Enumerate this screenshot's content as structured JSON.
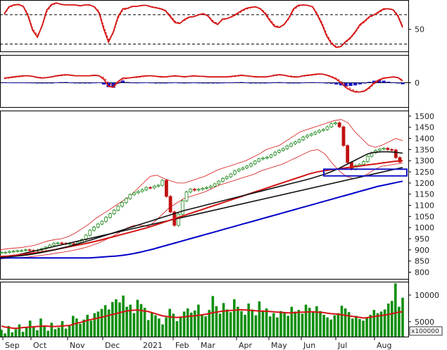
{
  "chart_data": [
    {
      "panel": "oscillator",
      "type": "line",
      "ylim": [
        5,
        110
      ],
      "y_ticks": [
        50
      ],
      "ref_lines": [
        80,
        20
      ],
      "series": [
        {
          "color": "#d41414",
          "values": [
            82,
            96,
            100,
            101,
            97,
            78,
            48,
            34,
            58,
            90,
            101,
            104,
            101,
            100,
            100,
            100,
            98,
            100,
            100,
            96,
            84,
            50,
            24,
            45,
            76,
            92,
            93,
            97,
            97,
            99,
            99,
            96,
            94,
            92,
            88,
            76,
            64,
            62,
            70,
            75,
            76,
            80,
            82,
            77,
            65,
            60,
            71,
            72,
            76,
            82,
            88,
            93,
            95,
            96,
            92,
            82,
            68,
            56,
            54,
            60,
            73,
            92,
            99,
            100,
            99,
            96,
            80,
            60,
            36,
            21,
            13,
            15,
            25,
            33,
            45,
            60,
            67,
            76,
            80,
            86,
            92,
            92,
            90,
            77,
            54
          ],
          "alt": [
            80,
            94,
            99,
            100,
            98,
            82,
            52,
            38,
            55,
            86,
            99,
            103,
            102,
            100,
            100,
            100,
            99,
            100,
            99,
            97,
            87,
            56,
            29,
            42,
            72,
            89,
            92,
            96,
            97,
            98,
            99,
            97,
            95,
            93,
            89,
            79,
            67,
            63,
            68,
            74,
            76,
            79,
            81,
            78,
            68,
            62,
            69,
            72,
            75,
            80,
            86,
            91,
            94,
            96,
            93,
            85,
            71,
            59,
            55,
            59,
            71,
            89,
            97,
            100,
            99,
            97,
            83,
            64,
            40,
            24,
            15,
            15,
            23,
            31,
            43,
            57,
            65,
            74,
            79,
            84,
            90,
            92,
            91,
            80,
            58
          ]
        }
      ]
    },
    {
      "panel": "macd",
      "type": "line",
      "ylim": [
        -42,
        48
      ],
      "y_ticks": [
        0
      ],
      "zero_line": true,
      "series": [
        {
          "color": "#d41414",
          "values": [
            8,
            9,
            10,
            11,
            12,
            12,
            11,
            9,
            8,
            9,
            10,
            12,
            13,
            14,
            13,
            12,
            12,
            12,
            12,
            13,
            12,
            6,
            -6,
            -8,
            2,
            8,
            8,
            9,
            10,
            11,
            12,
            12,
            11,
            10,
            10,
            11,
            12,
            11,
            10,
            11,
            12,
            11,
            11,
            10,
            10,
            10,
            10,
            10,
            11,
            12,
            13,
            12,
            11,
            10,
            10,
            10,
            11,
            13,
            14,
            13,
            11,
            10,
            10,
            12,
            13,
            14,
            15,
            15,
            13,
            10,
            6,
            0,
            -8,
            -13,
            -16,
            -16,
            -14,
            -8,
            0,
            5,
            8,
            9,
            10,
            9,
            3
          ],
          "alt": [
            7,
            8,
            9,
            10,
            11,
            12,
            11,
            10,
            9,
            9,
            10,
            11,
            12,
            13,
            13,
            12,
            12,
            12,
            12,
            12,
            12,
            9,
            0,
            -5,
            -1,
            5,
            8,
            9,
            9,
            10,
            11,
            12,
            11,
            11,
            10,
            11,
            11,
            11,
            11,
            11,
            11,
            11,
            11,
            10,
            10,
            10,
            10,
            10,
            10,
            11,
            12,
            12,
            11,
            11,
            10,
            10,
            11,
            12,
            13,
            13,
            12,
            11,
            10,
            11,
            12,
            13,
            14,
            15,
            14,
            11,
            8,
            3,
            -4,
            -10,
            -14,
            -16,
            -15,
            -10,
            -2,
            3,
            7,
            9,
            10,
            9,
            5
          ]
        },
        {
          "name": "histogram",
          "color": "#1616c8",
          "values": [
            0.8,
            0.6,
            0.5,
            0.4,
            0.5,
            0.3,
            0.2,
            -0.5,
            -0.9,
            -0.7,
            -0.3,
            0.6,
            1.0,
            1.2,
            0.5,
            0.1,
            -0.3,
            -0.5,
            -0.5,
            0.3,
            0.6,
            -3.0,
            -7.5,
            -8.5,
            -0.7,
            3.5,
            1.2,
            0.3,
            0.2,
            0.5,
            0.6,
            0.3,
            -0.3,
            -0.6,
            -0.3,
            0.3,
            0.6,
            0.2,
            -0.2,
            0.2,
            0.4,
            0.2,
            -0.2,
            -0.3,
            -0.3,
            -0.4,
            0.2,
            0.4,
            0.5,
            0.9,
            1.2,
            0.4,
            -0.3,
            -0.6,
            -0.6,
            -0.3,
            0.3,
            0.8,
            1.1,
            0.4,
            -0.5,
            -0.9,
            -0.6,
            0.5,
            0.8,
            0.9,
            0.7,
            0.5,
            -0.4,
            -1.6,
            -3.0,
            -4.5,
            -6.5,
            -5.5,
            -4.5,
            -2.8,
            -0.9,
            1.5,
            3.5,
            4.5,
            3.5,
            1.8,
            0.8,
            -0.7,
            -2.5
          ]
        }
      ]
    },
    {
      "panel": "price",
      "type": "line",
      "ylim": [
        770,
        1525
      ],
      "y_ticks": [
        800,
        850,
        900,
        950,
        1000,
        1050,
        1100,
        1150,
        1200,
        1250,
        1300,
        1350,
        1400,
        1450,
        1500
      ],
      "series": [
        {
          "name": "close",
          "color": "#1e8a1e",
          "values": [
            889,
            889,
            893,
            894,
            896,
            897,
            900,
            898,
            896,
            899,
            905,
            912,
            921,
            929,
            931,
            929,
            927,
            928,
            926,
            935,
            946,
            966,
            988,
            1002,
            1016,
            1028,
            1046,
            1062,
            1078,
            1096,
            1112,
            1130,
            1148,
            1156,
            1162,
            1170,
            1180,
            1178,
            1186,
            1190,
            1212,
            1140,
            1070,
            1010,
            1060,
            1120,
            1160,
            1172,
            1168,
            1172,
            1176,
            1180,
            1186,
            1196,
            1208,
            1220,
            1228,
            1240,
            1254,
            1262,
            1268,
            1276,
            1286,
            1298,
            1308,
            1312,
            1316,
            1326,
            1338,
            1346,
            1354,
            1366,
            1376,
            1384,
            1394,
            1406,
            1414,
            1420,
            1428,
            1436,
            1440,
            1452,
            1466,
            1470,
            1452,
            1368,
            1292,
            1262,
            1278,
            1284,
            1296,
            1320,
            1336,
            1346,
            1352,
            1356,
            1350,
            1348,
            1314,
            1294
          ]
        },
        {
          "name": "ma_a",
          "color": "#0000c8",
          "values": [
            864,
            864,
            864,
            864,
            864,
            864,
            864,
            864,
            864,
            864,
            864,
            864,
            864,
            864,
            864,
            866,
            868,
            870,
            872,
            875,
            879,
            884,
            890,
            897,
            904,
            912,
            920,
            928,
            936,
            944,
            952,
            960,
            968,
            976,
            984,
            992,
            1000,
            1008,
            1016,
            1024,
            1032,
            1040,
            1048,
            1056,
            1064,
            1072,
            1080,
            1088,
            1096,
            1104,
            1112,
            1120,
            1128,
            1136,
            1144,
            1152,
            1160,
            1168,
            1176,
            1184,
            1190,
            1196,
            1202,
            1208
          ]
        },
        {
          "name": "ma_b",
          "color": "#d41414",
          "values": [
            870,
            872,
            875,
            878,
            882,
            886,
            890,
            895,
            900,
            906,
            912,
            918,
            924,
            930,
            937,
            944,
            952,
            960,
            968,
            976,
            984,
            992,
            1000,
            1010,
            1020,
            1030,
            1040,
            1050,
            1060,
            1070,
            1080,
            1090,
            1100,
            1110,
            1120,
            1130,
            1140,
            1150,
            1160,
            1170,
            1180,
            1190,
            1200,
            1210,
            1220,
            1230,
            1240,
            1248,
            1254,
            1258,
            1262,
            1266,
            1270,
            1274,
            1278,
            1282,
            1286,
            1290,
            1294,
            1298,
            1300
          ]
        },
        {
          "name": "ma_c",
          "color": "#111111",
          "values": [
            866,
            868,
            871,
            874,
            878,
            883,
            889,
            895,
            902,
            910,
            918,
            927,
            936,
            946,
            956,
            966,
            976,
            986,
            996,
            1006,
            1016,
            1026,
            1036,
            1046,
            1056,
            1066,
            1076,
            1084,
            1092,
            1100,
            1108,
            1116,
            1124,
            1132,
            1140,
            1148,
            1156,
            1164,
            1172,
            1180,
            1188,
            1196,
            1204,
            1212,
            1220,
            1230,
            1240,
            1252,
            1266,
            1282,
            1298,
            1314,
            1330,
            1338,
            1340,
            1340,
            1338,
            1334
          ]
        },
        {
          "name": "band_upper",
          "color": "#d41414",
          "values": [
            900,
            905,
            908,
            910,
            915,
            920,
            930,
            940,
            946,
            950,
            960,
            975,
            995,
            1015,
            1040,
            1060,
            1080,
            1100,
            1120,
            1140,
            1170,
            1200,
            1230,
            1235,
            1220,
            1210,
            1200,
            1200,
            1210,
            1220,
            1230,
            1245,
            1260,
            1270,
            1280,
            1290,
            1300,
            1315,
            1330,
            1350,
            1360,
            1370,
            1390,
            1410,
            1430,
            1440,
            1450,
            1460,
            1470,
            1480,
            1485,
            1470,
            1430,
            1400,
            1370,
            1360,
            1370,
            1385,
            1400,
            1390
          ]
        },
        {
          "name": "band_lower",
          "color": "#d41414",
          "values": [
            860,
            862,
            864,
            866,
            868,
            872,
            876,
            880,
            886,
            890,
            896,
            902,
            910,
            920,
            932,
            946,
            962,
            980,
            998,
            1010,
            1010,
            1005,
            1030,
            1060,
            1090,
            1110,
            1130,
            1140,
            1150,
            1160,
            1175,
            1190,
            1200,
            1210,
            1220,
            1230,
            1240,
            1255,
            1265,
            1275,
            1285,
            1300,
            1315,
            1330,
            1345,
            1350,
            1330,
            1290,
            1255,
            1230,
            1220,
            1225,
            1240,
            1260,
            1275,
            1280,
            1285,
            1290
          ]
        },
        {
          "name": "trend_line",
          "color": "#111111",
          "values": [
            860,
            1270
          ]
        }
      ],
      "highlight_box": {
        "ylim": [
          1232,
          1262
        ],
        "color": "#1616c8"
      }
    },
    {
      "panel": "volume",
      "type": "bar",
      "ylim": [
        2200,
        12500
      ],
      "y_ticks": [
        5000,
        10000
      ],
      "multiplier_label": "x100000",
      "bar_color": "#0e8f0e",
      "values": [
        3500,
        2800,
        4200,
        3000,
        3600,
        4500,
        3100,
        3900,
        5200,
        4100,
        3400,
        5600,
        4300,
        3300,
        4800,
        3600,
        3900,
        5100,
        3700,
        4200,
        6100,
        5600,
        4600,
        5400,
        6300,
        5200,
        6600,
        6900,
        7400,
        8100,
        7300,
        8700,
        9200,
        8600,
        9900,
        7800,
        8200,
        6600,
        9100,
        8300,
        7600,
        5300,
        6800,
        6200,
        5600,
        4500,
        5800,
        7400,
        6500,
        5100,
        5800,
        6900,
        7500,
        6700,
        7100,
        8200,
        6400,
        6000,
        7200,
        9800,
        7900,
        6500,
        8500,
        7300,
        6800,
        9200,
        7800,
        7000,
        6300,
        8400,
        7300,
        6200,
        8800,
        6900,
        7500,
        6000,
        6600,
        5800,
        7000,
        6800,
        6100,
        7800,
        6900,
        7200,
        6500,
        8200,
        7600,
        6800,
        7900,
        7000,
        6300,
        5800,
        5400,
        6200,
        6600,
        8000,
        7500,
        6800,
        5600,
        6100,
        5500,
        5200,
        5800,
        6300,
        7200,
        6600,
        6900,
        7300,
        8400,
        8900,
        12200,
        7800,
        9500
      ],
      "ma": [
        4200,
        4000,
        3900,
        3800,
        3750,
        3800,
        3900,
        3950,
        4000,
        4050,
        4100,
        4150,
        4200,
        4150,
        4100,
        4100,
        4150,
        4200,
        4250,
        4300,
        4500,
        4700,
        4850,
        5050,
        5250,
        5400,
        5550,
        5700,
        5850,
        6000,
        6200,
        6350,
        6500,
        6700,
        6850,
        7000,
        7100,
        7150,
        7200,
        7100,
        7000,
        6900,
        6700,
        6500,
        6300,
        6100,
        6000,
        5900,
        5850,
        5800,
        5850,
        5900,
        6000,
        6050,
        6100,
        6200,
        6300,
        6400,
        6500,
        6700,
        6800,
        6900,
        7000,
        7050,
        7100,
        7150,
        7200,
        7250,
        7200,
        7150,
        7100,
        7050,
        7000,
        7000,
        6950,
        6900,
        6850,
        6800,
        6750,
        6700,
        6650,
        6650,
        6700,
        6750,
        6800,
        6800,
        6850,
        6850,
        6800,
        6750,
        6700,
        6600,
        6500,
        6450,
        6400,
        6300,
        6200,
        6100,
        6000,
        5900,
        5800,
        5700,
        5750,
        5850,
        5950,
        6050,
        6150,
        6250,
        6350,
        6500,
        6650,
        6800,
        6850
      ],
      "ma_color": "#d41414"
    }
  ],
  "x_axis": {
    "labels": [
      "Sep",
      "Oct",
      "Nov",
      "Dec",
      "2021",
      "Feb",
      "Mar",
      "Apr",
      "May",
      "Jun",
      "Jul",
      "Aug"
    ]
  }
}
